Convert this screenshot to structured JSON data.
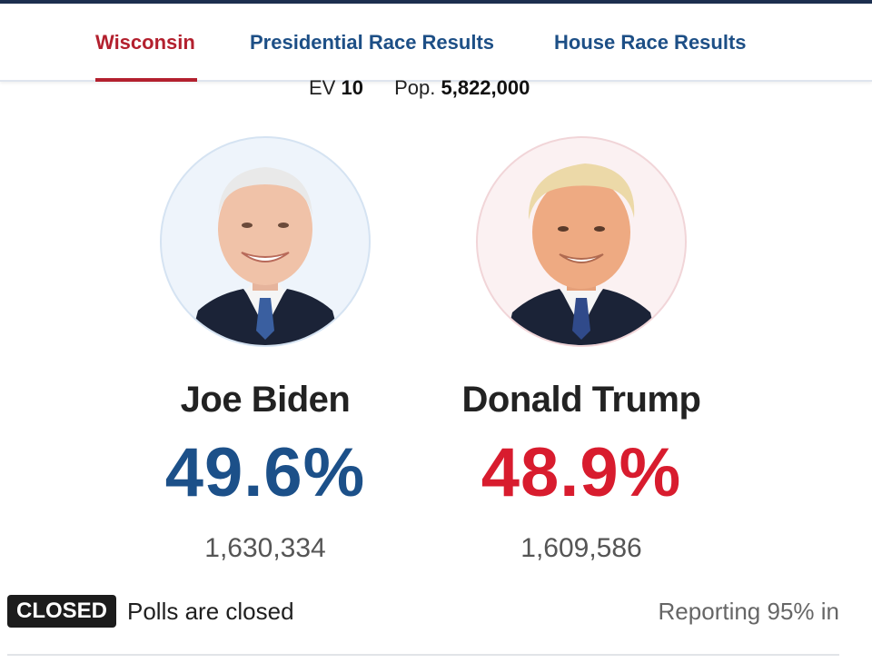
{
  "nav": {
    "tabs": [
      {
        "label": "Wisconsin",
        "active": true
      },
      {
        "label": "Presidential Race Results",
        "active": false
      },
      {
        "label": "House Race Results",
        "active": false
      }
    ]
  },
  "state_info": {
    "ev_label": "EV",
    "ev_value": "10",
    "pop_label": "Pop.",
    "pop_value": "5,822,000"
  },
  "candidates": [
    {
      "name": "Joe Biden",
      "percent": "49.6%",
      "votes": "1,630,334",
      "color": "#1c5089",
      "photo_icon": "candidate-photo-biden"
    },
    {
      "name": "Donald Trump",
      "percent": "48.9%",
      "votes": "1,609,586",
      "color": "#d81c2e",
      "photo_icon": "candidate-photo-trump"
    }
  ],
  "status": {
    "badge": "CLOSED",
    "text": "Polls are closed",
    "reporting": "Reporting 95% in"
  },
  "colors": {
    "active_tab": "#b3202e",
    "tab": "#1d4f86",
    "dem": "#1c5089",
    "rep": "#d81c2e"
  }
}
